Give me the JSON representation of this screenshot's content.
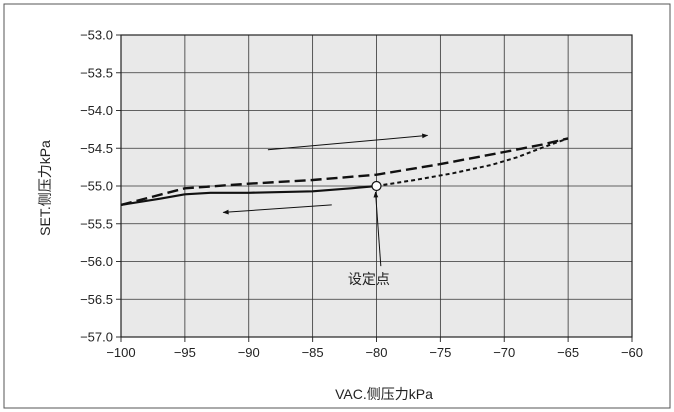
{
  "chart_data": {
    "type": "line",
    "xlabel": "VAC.侧压力kPa",
    "ylabel": "SET.侧压力kPa",
    "xlim": [
      -100,
      -60
    ],
    "ylim": [
      -57.0,
      -53.0
    ],
    "x_ticks": [
      "−100",
      "−95",
      "−90",
      "−85",
      "−80",
      "−75",
      "−70",
      "−65",
      "−60"
    ],
    "y_ticks": [
      "−53.0",
      "−53.5",
      "−54.0",
      "−54.5",
      "−55.0",
      "−55.5",
      "−56.0",
      "−56.5",
      "−57.0"
    ],
    "grid": true,
    "background": "#e9e9e9",
    "series": [
      {
        "style": "solid",
        "x": [
          -100,
          -97,
          -95,
          -93,
          -90,
          -85,
          -82,
          -80
        ],
        "y": [
          -55.25,
          -55.17,
          -55.11,
          -55.09,
          -55.09,
          -55.07,
          -55.03,
          -55.0
        ]
      },
      {
        "style": "dashed",
        "x": [
          -100,
          -95,
          -90,
          -85,
          -80,
          -75,
          -70,
          -67,
          -65
        ],
        "y": [
          -55.25,
          -55.03,
          -54.97,
          -54.92,
          -54.85,
          -54.71,
          -54.55,
          -54.45,
          -54.37
        ]
      },
      {
        "style": "dotted",
        "x": [
          -80,
          -77,
          -74,
          -71,
          -69,
          -67,
          -65
        ],
        "y": [
          -55.0,
          -54.92,
          -54.83,
          -54.72,
          -54.62,
          -54.49,
          -54.37
        ]
      }
    ],
    "set_point": {
      "x": -80,
      "y": -55.0
    },
    "annotations": [
      {
        "text": "设定点",
        "x": -80.6,
        "y": -56.3
      }
    ],
    "arrows": [
      {
        "from": [
          -83.5,
          -55.25
        ],
        "to": [
          -92.0,
          -55.35
        ]
      },
      {
        "from": [
          -88.5,
          -54.52
        ],
        "to": [
          -76.0,
          -54.33
        ]
      }
    ]
  }
}
